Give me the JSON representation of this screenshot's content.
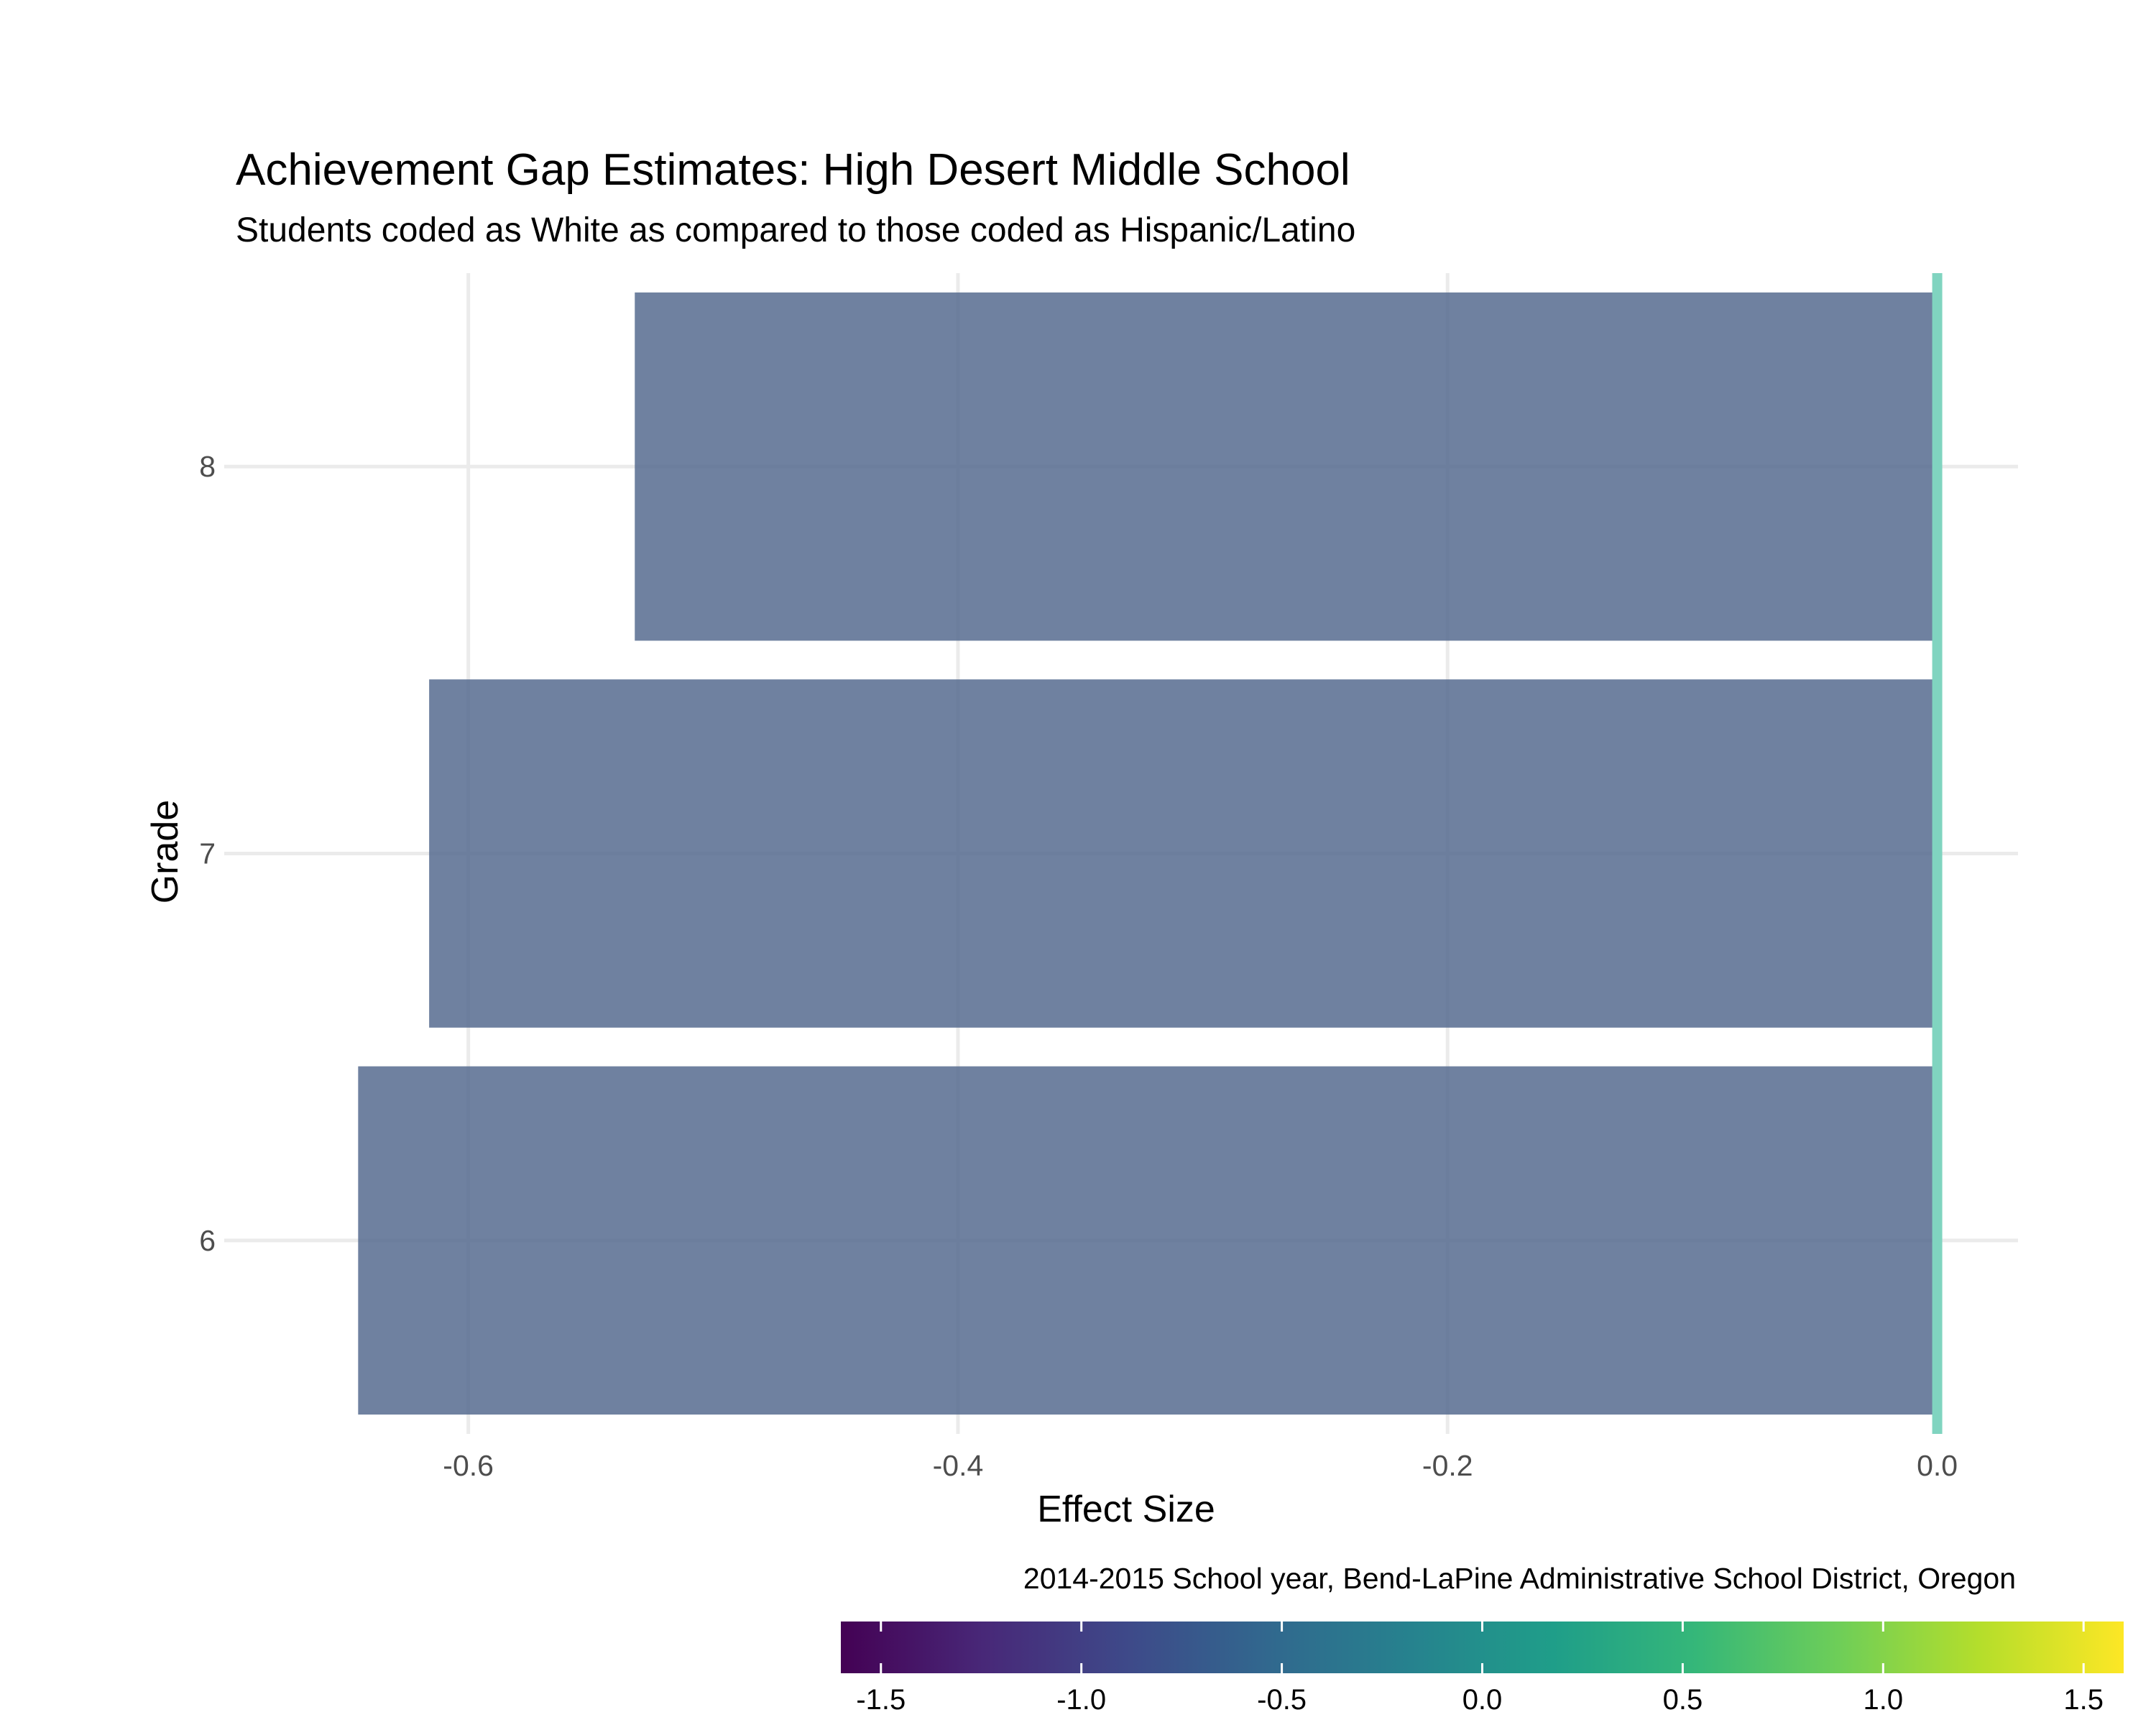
{
  "chart_data": {
    "type": "bar",
    "orientation": "horizontal",
    "title": "Achievement Gap Estimates: High Desert Middle School",
    "subtitle": "Students coded as White as compared to those coded as Hispanic/Latino",
    "caption": "2014-2015 School year, Bend-LaPine Administrative School District, Oregon",
    "xlabel": "Effect Size",
    "ylabel": "Grade",
    "categories": [
      "6",
      "7",
      "8"
    ],
    "values": [
      -0.645,
      -0.616,
      -0.532
    ],
    "bar_fill": "#566b8f",
    "bar_alpha": 0.85,
    "xlim": [
      -0.695,
      0.033
    ],
    "x_ticks": [
      -0.6,
      -0.4,
      -0.2,
      0.0
    ],
    "x_tick_labels": [
      "-0.6",
      "-0.4",
      "-0.2",
      "0.0"
    ],
    "reference_line": {
      "x": 0.0,
      "color": "#80d4c0"
    },
    "grid": true,
    "legend": {
      "type": "colorbar",
      "placement": "bottom-right",
      "range": [
        -1.6,
        1.6
      ],
      "ticks": [
        -1.5,
        -1.0,
        -0.5,
        0.0,
        0.5,
        1.0,
        1.5
      ],
      "tick_labels": [
        "-1.5",
        "-1.0",
        "-0.5",
        "0.0",
        "0.5",
        "1.0",
        "1.5"
      ],
      "palette": "viridis",
      "colors": [
        "#440154",
        "#482878",
        "#3e4989",
        "#31688e",
        "#26828e",
        "#1f9e89",
        "#35b779",
        "#6ece58",
        "#b5de2b",
        "#fde725"
      ]
    }
  }
}
